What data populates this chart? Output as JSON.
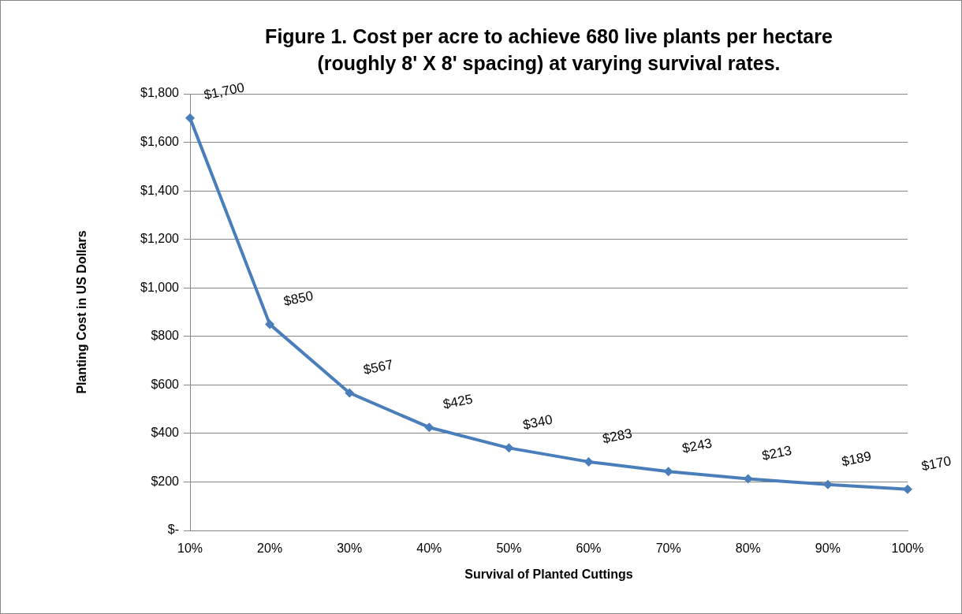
{
  "chart_data": {
    "type": "line",
    "title": "Figure 1. Cost per acre to achieve 680 live plants per hectare (roughly 8' X 8' spacing) at varying survival rates.",
    "xlabel": "Survival of Planted Cuttings",
    "ylabel": "Planting Cost in US Dollars",
    "categories": [
      "10%",
      "20%",
      "30%",
      "40%",
      "50%",
      "60%",
      "70%",
      "80%",
      "90%",
      "100%"
    ],
    "series": [
      {
        "color": "#4a7ebb",
        "values": [
          1700,
          850,
          567,
          425,
          340,
          283,
          243,
          213,
          189,
          170
        ],
        "value_labels": [
          "$1,700",
          "$850",
          "$567",
          "$425",
          "$340",
          "$283",
          "$243",
          "$213",
          "$189",
          "$170"
        ]
      }
    ],
    "ylim": [
      0,
      1800
    ],
    "yticks": [
      {
        "value": 0,
        "label": "$-"
      },
      {
        "value": 200,
        "label": "$200"
      },
      {
        "value": 400,
        "label": "$400"
      },
      {
        "value": 600,
        "label": "$600"
      },
      {
        "value": 800,
        "label": "$800"
      },
      {
        "value": 1000,
        "label": "$1,000"
      },
      {
        "value": 1200,
        "label": "$1,200"
      },
      {
        "value": 1400,
        "label": "$1,400"
      },
      {
        "value": 1600,
        "label": "$1,600"
      },
      {
        "value": 1800,
        "label": "$1,800"
      }
    ],
    "grid": "y",
    "legend": false,
    "marker": "diamond",
    "line_style": "solid"
  }
}
